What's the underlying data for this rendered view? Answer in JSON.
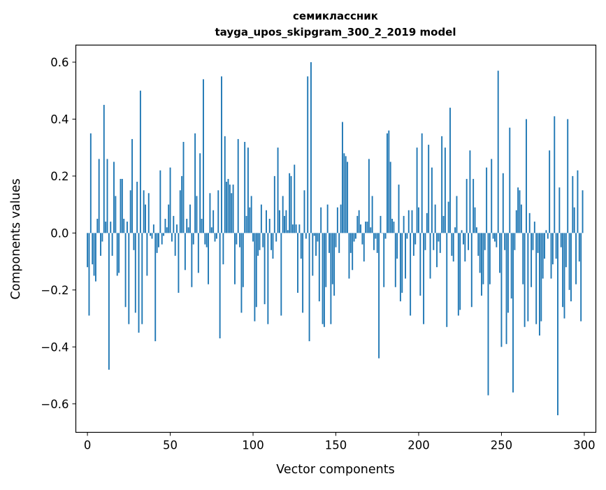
{
  "chart_data": {
    "type": "bar",
    "title_line1": "семиклассник",
    "title_line2": "tayga_upos_skipgram_300_2_2019 model",
    "xlabel": "Vector components",
    "ylabel": "Components values",
    "xlim": [
      -7,
      307
    ],
    "ylim": [
      -0.7,
      0.66
    ],
    "bar_color": "#1f77b4",
    "x_ticks": [
      0,
      50,
      100,
      150,
      200,
      250,
      300
    ],
    "x_tick_labels": [
      "0",
      "50",
      "100",
      "150",
      "200",
      "250",
      "300"
    ],
    "y_ticks": [
      -0.6,
      -0.4,
      -0.2,
      0.0,
      0.2,
      0.4,
      0.6
    ],
    "y_tick_labels": [
      "−0.6",
      "−0.4",
      "−0.2",
      "0.0",
      "0.2",
      "0.4",
      "0.6"
    ],
    "values": [
      -0.12,
      -0.29,
      0.35,
      -0.11,
      -0.15,
      -0.17,
      0.05,
      0.26,
      -0.08,
      -0.03,
      0.45,
      0.04,
      0.26,
      -0.48,
      0.04,
      -0.08,
      0.25,
      0.13,
      -0.15,
      -0.14,
      0.19,
      0.19,
      0.05,
      -0.26,
      0.04,
      -0.32,
      0.15,
      0.33,
      -0.06,
      -0.28,
      0.18,
      -0.35,
      0.5,
      -0.32,
      0.15,
      0.1,
      -0.15,
      0.14,
      -0.01,
      -0.02,
      0.03,
      -0.38,
      -0.07,
      -0.05,
      0.22,
      -0.04,
      -0.01,
      0.05,
      0.02,
      0.1,
      0.23,
      -0.03,
      0.06,
      -0.08,
      0.03,
      -0.21,
      0.15,
      0.2,
      0.32,
      -0.13,
      0.05,
      0.02,
      0.1,
      -0.19,
      -0.04,
      0.35,
      0.13,
      -0.14,
      0.28,
      0.05,
      0.54,
      -0.04,
      -0.05,
      -0.18,
      0.14,
      0.02,
      0.08,
      -0.03,
      -0.02,
      0.15,
      -0.37,
      0.55,
      -0.11,
      0.34,
      0.18,
      0.19,
      0.17,
      0.14,
      0.17,
      -0.18,
      -0.04,
      0.33,
      -0.05,
      -0.28,
      -0.19,
      0.32,
      0.06,
      0.3,
      0.09,
      0.13,
      -0.03,
      -0.31,
      -0.26,
      -0.08,
      -0.06,
      0.1,
      -0.05,
      -0.25,
      0.08,
      -0.32,
      0.05,
      -0.06,
      -0.09,
      0.2,
      -0.03,
      0.3,
      0.08,
      -0.29,
      0.13,
      0.06,
      0.08,
      0.01,
      0.21,
      0.2,
      0.03,
      0.24,
      0.03,
      -0.21,
      0.03,
      -0.09,
      -0.28,
      0.15,
      -0.02,
      0.55,
      -0.38,
      0.6,
      -0.15,
      -0.01,
      -0.08,
      -0.03,
      -0.24,
      0.09,
      -0.32,
      -0.33,
      -0.19,
      0.1,
      -0.07,
      -0.32,
      -0.18,
      -0.22,
      -0.05,
      0.09,
      -0.07,
      0.1,
      0.39,
      0.28,
      0.27,
      0.25,
      -0.16,
      -0.07,
      -0.13,
      -0.03,
      -0.02,
      0.06,
      0.08,
      0.03,
      -0.04,
      -0.1,
      0.04,
      0.04,
      0.26,
      0.02,
      0.13,
      -0.06,
      -0.02,
      -0.07,
      -0.44,
      0.06,
      0.0,
      -0.19,
      -0.02,
      0.35,
      0.36,
      0.25,
      0.05,
      0.04,
      -0.19,
      -0.09,
      0.17,
      -0.24,
      -0.21,
      0.06,
      -0.16,
      -0.02,
      0.08,
      -0.29,
      0.08,
      -0.08,
      -0.04,
      0.3,
      0.09,
      -0.22,
      0.35,
      -0.32,
      -0.06,
      0.07,
      0.31,
      -0.16,
      0.23,
      -0.06,
      0.1,
      -0.12,
      -0.03,
      -0.07,
      0.34,
      0.06,
      0.3,
      -0.33,
      0.11,
      0.44,
      -0.08,
      -0.1,
      0.02,
      0.13,
      -0.29,
      -0.27,
      0.01,
      -0.04,
      -0.1,
      0.19,
      -0.06,
      0.29,
      -0.26,
      0.19,
      0.09,
      0.02,
      -0.08,
      -0.14,
      -0.22,
      -0.18,
      -0.06,
      0.23,
      -0.57,
      -0.18,
      0.26,
      -0.02,
      -0.03,
      -0.05,
      0.57,
      -0.14,
      -0.4,
      0.21,
      -0.06,
      -0.39,
      -0.28,
      0.37,
      -0.23,
      -0.56,
      -0.06,
      0.08,
      0.16,
      0.15,
      0.1,
      -0.18,
      -0.33,
      0.4,
      -0.31,
      0.07,
      -0.19,
      -0.06,
      0.04,
      -0.32,
      -0.07,
      -0.36,
      -0.31,
      -0.16,
      -0.09,
      0.01,
      -0.02,
      0.29,
      -0.16,
      -0.11,
      0.41,
      -0.09,
      -0.64,
      0.16,
      -0.05,
      -0.26,
      -0.3,
      -0.12,
      0.4,
      -0.2,
      -0.24,
      0.2,
      0.09,
      -0.18,
      0.22,
      -0.1,
      -0.31,
      0.15
    ]
  }
}
